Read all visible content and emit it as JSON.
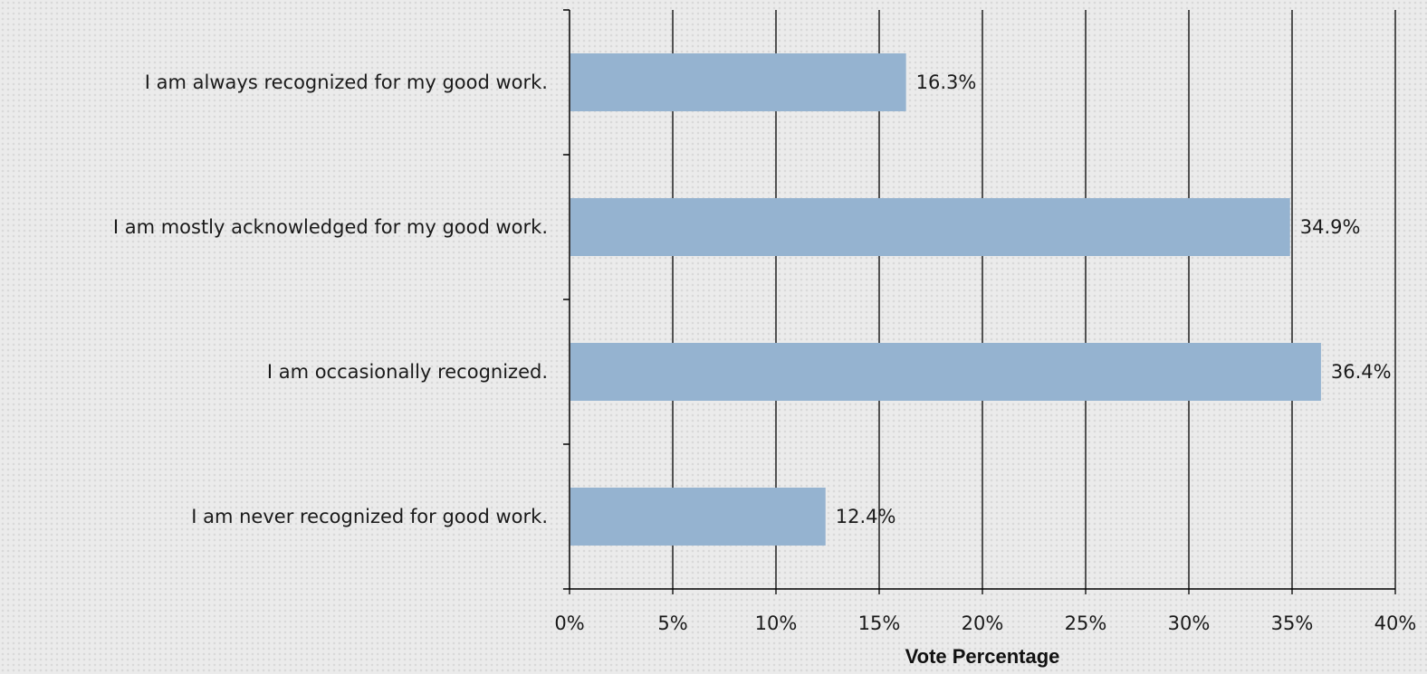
{
  "chart_data": {
    "type": "bar",
    "orientation": "horizontal",
    "categories": [
      "I am always recognized for my good work.",
      "I am mostly acknowledged for my good work.",
      "I am occasionally recognized.",
      "I am never recognized for good work."
    ],
    "values": [
      16.3,
      34.9,
      36.4,
      12.4
    ],
    "data_labels": [
      "16.3%",
      "34.9%",
      "36.4%",
      "12.4%"
    ],
    "xlabel": "Vote Percentage",
    "ylabel": "",
    "title": "",
    "xlim": [
      0,
      40
    ],
    "x_ticks": [
      0,
      5,
      10,
      15,
      20,
      25,
      30,
      35,
      40
    ],
    "x_tick_labels": [
      "0%",
      "5%",
      "10%",
      "15%",
      "20%",
      "25%",
      "30%",
      "35%",
      "40%"
    ],
    "grid": "vertical",
    "legend": "none",
    "colors": {
      "bar": "#95b3d0",
      "grid": "#000000",
      "axis": "#000000",
      "text": "#1a1a1a"
    }
  }
}
